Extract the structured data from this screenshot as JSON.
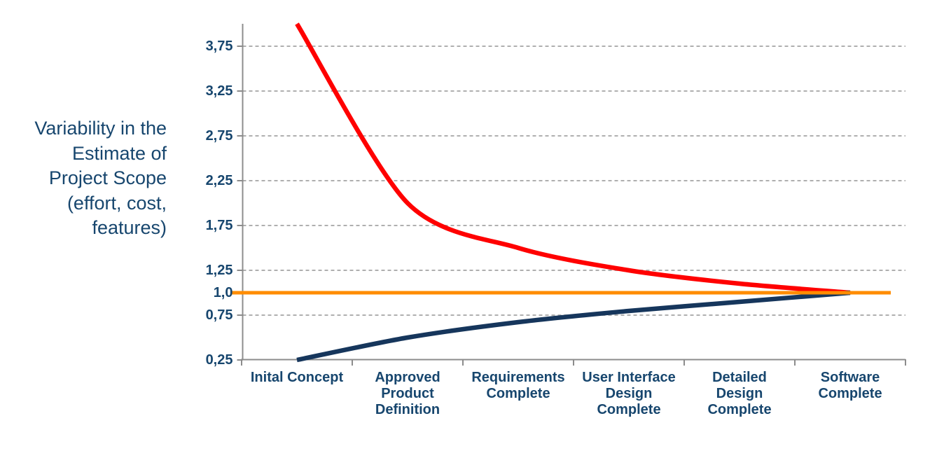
{
  "page": {
    "background": "#ffffff"
  },
  "y_axis_title": {
    "text": "Variability in the Estimate of Project Scope (effort, cost, features)",
    "lines": [
      "Variability in the",
      "Estimate of",
      "Project Scope",
      "(effort, cost,",
      "features)"
    ]
  },
  "chart_data": {
    "type": "line",
    "title": "",
    "xlabel": "",
    "ylabel": "Variability in the Estimate of Project Scope (effort, cost, features)",
    "categories": [
      "Inital Concept",
      "Approved Product Definition",
      "Requirements Complete",
      "User Interface Design Complete",
      "Detailed Design Complete",
      "Software Complete"
    ],
    "category_label_lines": [
      [
        "Inital Concept"
      ],
      [
        "Approved",
        "Product",
        "Definition"
      ],
      [
        "Requirements",
        "Complete"
      ],
      [
        "User Interface",
        "Design",
        "Complete"
      ],
      [
        "Detailed",
        "Design",
        "Complete"
      ],
      [
        "Software",
        "Complete"
      ]
    ],
    "series": [
      {
        "name": "upper-estimate",
        "color": "#FF0000",
        "values": [
          4.0,
          2.0,
          1.5,
          1.25,
          1.1,
          1.0
        ],
        "smooth": true,
        "stroke_width": 6.5
      },
      {
        "name": "lower-estimate",
        "color": "#16365C",
        "values": [
          0.25,
          0.5,
          0.67,
          0.8,
          0.9,
          1.0
        ],
        "smooth": true,
        "stroke_width": 6.5
      },
      {
        "name": "baseline",
        "color": "#FF8C00",
        "values": [
          1.0,
          1.0,
          1.0,
          1.0,
          1.0,
          1.0
        ],
        "smooth": false,
        "stroke_width": 5,
        "extends_past_axis": true
      }
    ],
    "y_ticks": [
      {
        "label": "3,75",
        "value": 3.75,
        "gridline": true
      },
      {
        "label": "3,25",
        "value": 3.25,
        "gridline": true
      },
      {
        "label": "2,75",
        "value": 2.75,
        "gridline": true
      },
      {
        "label": "2,25",
        "value": 2.25,
        "gridline": true
      },
      {
        "label": "1,75",
        "value": 1.75,
        "gridline": true
      },
      {
        "label": "1,25",
        "value": 1.25,
        "gridline": true
      },
      {
        "label": "1,0",
        "value": 1.0,
        "gridline": false
      },
      {
        "label": "0,75",
        "value": 0.75,
        "gridline": true
      },
      {
        "label": "0,25",
        "value": 0.25,
        "gridline": false
      }
    ],
    "ylim": [
      0.25,
      4.0
    ],
    "grid": "horizontal-dashed",
    "legend": "none",
    "colors": {
      "axis": "#8C8C8C",
      "gridline": "#AFAFAF",
      "label_text": "#17466E",
      "title_text": "#17466E"
    }
  }
}
